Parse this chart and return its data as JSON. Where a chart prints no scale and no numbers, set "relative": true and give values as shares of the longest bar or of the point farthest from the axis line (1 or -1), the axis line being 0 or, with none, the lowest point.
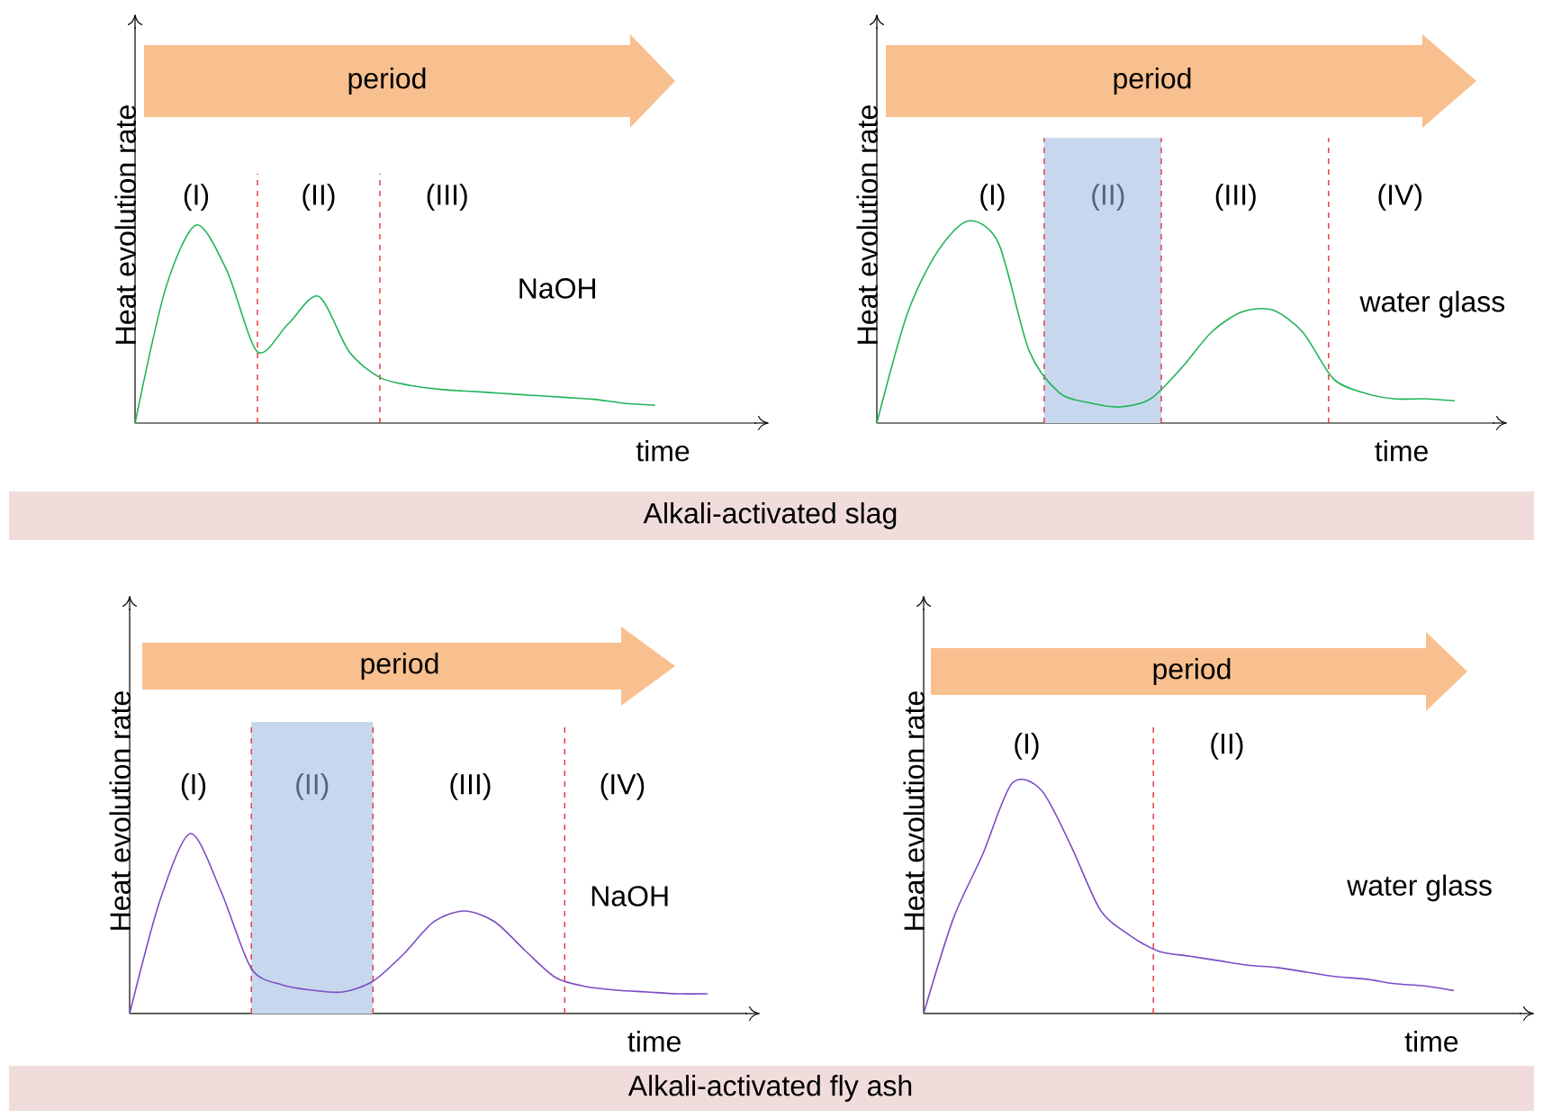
{
  "chart_data": [
    {
      "type": "line",
      "relative": true,
      "xlabel": "time",
      "ylabel": "Heat evolution rate",
      "categories": [
        null,
        null,
        null,
        null,
        null,
        null,
        null,
        null,
        null,
        null,
        null,
        null,
        null,
        null,
        null,
        null,
        null,
        null,
        null,
        null,
        null
      ],
      "series": [
        {
          "color": "#22b35a",
          "values": [
            0,
            0.68,
            1.0,
            0.77,
            0.36,
            0.5,
            0.64,
            0.36,
            0.23,
            0.19,
            0.17,
            0.16,
            0.15,
            0.14,
            0.13,
            0.12,
            0.1,
            0.09,
            null,
            null,
            null
          ]
        }
      ],
      "annotations": [
        "period",
        "NaOH",
        "(I)",
        "(II)",
        "(III)",
        "Alkali-activated slag"
      ]
    },
    {
      "type": "line",
      "relative": true,
      "xlabel": "time",
      "ylabel": "Heat evolution rate",
      "categories": [
        null,
        null,
        null,
        null,
        null,
        null,
        null,
        null,
        null,
        null,
        null,
        null,
        null,
        null,
        null,
        null,
        null,
        null,
        null,
        null,
        null
      ],
      "series": [
        {
          "color": "#22b35a",
          "values": [
            0,
            0.54,
            0.85,
            1.0,
            0.89,
            0.36,
            0.15,
            0.1,
            0.08,
            0.12,
            0.27,
            0.45,
            0.55,
            0.56,
            0.45,
            0.22,
            0.15,
            0.12,
            0.12,
            0.11,
            null
          ]
        }
      ],
      "annotations": [
        "period",
        "water glass",
        "(I)",
        "(II)",
        "(III)",
        "(IV)"
      ]
    },
    {
      "type": "line",
      "relative": true,
      "xlabel": "time",
      "ylabel": "Heat evolution rate",
      "categories": [
        null,
        null,
        null,
        null,
        null,
        null,
        null,
        null,
        null,
        null,
        null,
        null,
        null,
        null,
        null,
        null,
        null,
        null,
        null,
        null,
        null
      ],
      "series": [
        {
          "color": "#7d4cc4",
          "values": [
            0,
            0.63,
            1.0,
            0.68,
            0.25,
            0.16,
            0.13,
            0.12,
            0.18,
            0.33,
            0.51,
            0.57,
            0.51,
            0.35,
            0.2,
            0.15,
            0.13,
            0.12,
            0.11,
            0.11,
            null
          ]
        }
      ],
      "annotations": [
        "period",
        "NaOH",
        "(I)",
        "(II)",
        "(III)",
        "(IV)",
        "Alkali-activated fly ash"
      ]
    },
    {
      "type": "line",
      "relative": true,
      "xlabel": "time",
      "ylabel": "Heat evolution rate",
      "categories": [
        null,
        null,
        null,
        null,
        null,
        null,
        null,
        null,
        null,
        null,
        null,
        null,
        null,
        null,
        null,
        null,
        null,
        null,
        null,
        null,
        null
      ],
      "series": [
        {
          "color": "#7d4cc4",
          "values": [
            0,
            0.41,
            0.69,
            1.0,
            0.97,
            0.73,
            0.45,
            0.34,
            0.27,
            0.25,
            0.23,
            0.21,
            0.2,
            0.18,
            0.16,
            0.15,
            0.13,
            0.12,
            0.1,
            null,
            null
          ]
        }
      ],
      "annotations": [
        "period",
        "water glass",
        "(I)",
        "(II)"
      ]
    }
  ]
}
